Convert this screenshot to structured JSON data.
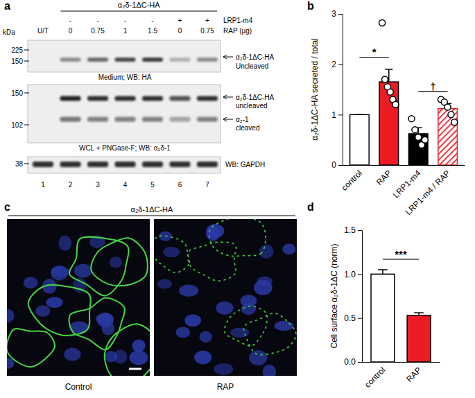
{
  "panel_labels": [
    "a",
    "b",
    "c",
    "d"
  ],
  "blot": {
    "header": "α₂δ-1ΔC-HA",
    "kda_label": "kDa",
    "rows": [
      {
        "label": "LRP1-m4",
        "values": [
          null,
          "-",
          "-",
          "-",
          "-",
          "+",
          "+"
        ]
      },
      {
        "label": "RAP (µg)",
        "values": [
          "U/T",
          "0",
          "0.75",
          "1",
          "1.5",
          "0",
          "0.75"
        ]
      }
    ],
    "lanes": [
      "1",
      "2",
      "3",
      "4",
      "5",
      "6",
      "7"
    ],
    "panels": [
      {
        "markers": [
          225,
          150
        ],
        "caption": "Medium; WB: HA",
        "bands": [
          {
            "label": [
              "α₂δ-1ΔC-HA",
              "Uncleaved"
            ],
            "intensity": [
              0,
              0.45,
              0.6,
              0.75,
              0.8,
              0.25,
              0.45
            ]
          }
        ]
      },
      {
        "markers": [
          150,
          102
        ],
        "caption": "WCL + PNGase-F; WB: α₂δ-1",
        "bands": [
          {
            "label": [
              "α₂δ-1ΔC-HA",
              "uncleaved"
            ],
            "intensity": [
              0,
              0.9,
              0.85,
              0.85,
              0.85,
              0.7,
              0.85
            ]
          },
          {
            "label": [
              "α₂-1",
              "cleaved"
            ],
            "intensity": [
              0,
              0.55,
              0.5,
              0.5,
              0.5,
              0.35,
              0.5
            ]
          }
        ]
      },
      {
        "markers": [
          38
        ],
        "caption": "WB: GAPDH",
        "bands": [
          {
            "intensity": [
              0.85,
              0.85,
              0.85,
              0.85,
              0.85,
              0.85,
              0.85
            ]
          }
        ]
      }
    ]
  },
  "images": {
    "header": "α₂δ-1ΔC-HA",
    "captions": [
      "Control",
      "RAP"
    ]
  },
  "chart_data": [
    {
      "type": "bar",
      "y_label": "α₂δ-1ΔC-HA secreted / total",
      "categories": [
        "control",
        "RAP",
        "LRP1-m4",
        "LRP1-m4 / RAP"
      ],
      "values": [
        1,
        1.65,
        0.62,
        1.12
      ],
      "errors": [
        0,
        0.25,
        0.12,
        0.1
      ],
      "points": [
        [],
        [
          2.82,
          1.7,
          1.55,
          1.45,
          1.3,
          1.2
        ],
        [
          0.92,
          0.7,
          0.55,
          0.4,
          0.5
        ],
        [
          1.3,
          1.25,
          1.15,
          1.0,
          0.85
        ]
      ],
      "colors": [
        "#ffffff",
        "#ed1c24",
        "#000000",
        "#ed1c24"
      ],
      "ylim": [
        0,
        3
      ],
      "yticks": [
        0,
        1,
        2,
        3
      ],
      "annotations": [
        {
          "text": "*",
          "from": "control",
          "to": "RAP"
        },
        {
          "text": "†",
          "from": "LRP1-m4",
          "to": "LRP1-m4 / RAP"
        }
      ]
    },
    {
      "type": "bar",
      "y_label": "Cell surface α₂δ-1ΔC (norm)",
      "categories": [
        "control",
        "RAP"
      ],
      "values": [
        1.0,
        0.53
      ],
      "errors": [
        0.05,
        0.03
      ],
      "colors": [
        "#ffffff",
        "#ed1c24"
      ],
      "ylim": [
        0,
        1.5
      ],
      "yticks": [
        {
          "value": 0,
          "label": "0.0"
        },
        {
          "value": 0.5,
          "label": "0.5"
        },
        {
          "value": 1,
          "label": "1.0"
        },
        {
          "value": 1.5,
          "label": "1.5"
        }
      ],
      "annotations": [
        {
          "text": "***",
          "from": "control",
          "to": "RAP"
        }
      ]
    }
  ]
}
